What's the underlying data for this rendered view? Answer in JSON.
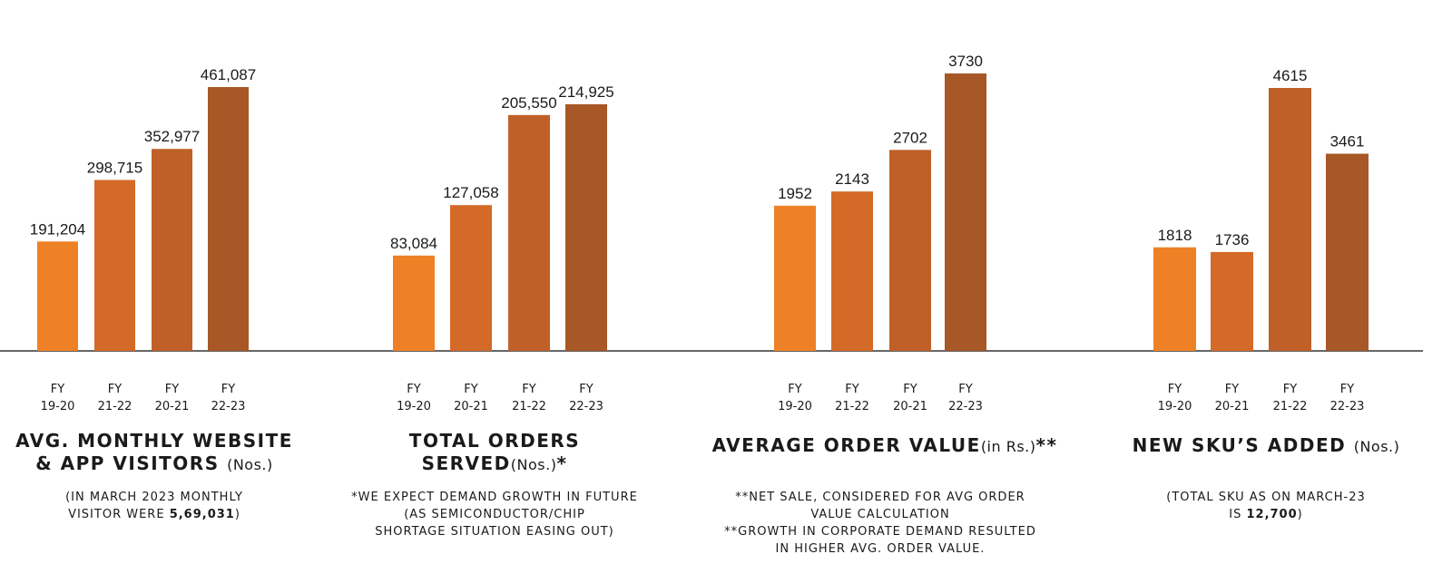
{
  "colors": [
    "#EE8125",
    "#D46A28",
    "#BF6028",
    "#A85726"
  ],
  "axis_color": "#333333",
  "chart_data": [
    {
      "type": "bar",
      "categories": [
        "FY 19-20",
        "FY 21-22",
        "FY 20-21",
        "FY 22-23"
      ],
      "values": [
        191204,
        298715,
        352977,
        461087
      ],
      "labels": [
        "191,204",
        "298,715",
        "352,977",
        "461,087"
      ],
      "ticks": [
        [
          "FY",
          "19-20"
        ],
        [
          "FY",
          "21-22"
        ],
        [
          "FY",
          "20-21"
        ],
        [
          "FY",
          "22-23"
        ]
      ],
      "title": "AVG. MONTHLY WEBSITE & APP VISITORS (Nos.)",
      "title_lines": [
        "AVG. MONTHLY WEBSITE",
        "& APP VISITORS "
      ],
      "title_unit": "(Nos.)",
      "note_lines": [
        "(IN MARCH 2023 MONTHLY",
        "VISITOR WERE "
      ],
      "note_emphasis": "5,69,031",
      "note_tail": ")"
    },
    {
      "type": "bar",
      "categories": [
        "FY 19-20",
        "FY 20-21",
        "FY 21-22",
        "FY 22-23"
      ],
      "values": [
        83084,
        127058,
        205550,
        214925
      ],
      "labels": [
        "83,084",
        "127,058",
        "205,550",
        "214,925"
      ],
      "ticks": [
        [
          "FY",
          "19-20"
        ],
        [
          "FY",
          "20-21"
        ],
        [
          "FY",
          "21-22"
        ],
        [
          "FY",
          "22-23"
        ]
      ],
      "title": "TOTAL ORDERS SERVED(Nos.)*",
      "title_lines": [
        "TOTAL ORDERS",
        "SERVED"
      ],
      "title_unit": "(Nos.)",
      "title_suffix": "*",
      "note_lines": [
        "*WE EXPECT DEMAND GROWTH IN FUTURE",
        "(AS SEMICONDUCTOR/CHIP",
        "SHORTAGE SITUATION EASING OUT)"
      ]
    },
    {
      "type": "bar",
      "categories": [
        "FY 19-20",
        "FY 21-22",
        "FY 20-21",
        "FY 22-23"
      ],
      "values": [
        1952,
        2143,
        2702,
        3730
      ],
      "labels": [
        "1952",
        "2143",
        "2702",
        "3730"
      ],
      "ticks": [
        [
          "FY",
          "19-20"
        ],
        [
          "FY",
          "21-22"
        ],
        [
          "FY",
          "20-21"
        ],
        [
          "FY",
          "22-23"
        ]
      ],
      "title": "AVERAGE ORDER VALUE(in Rs.)**",
      "title_lines": [
        "AVERAGE ORDER VALUE"
      ],
      "title_unit": "(in Rs.)",
      "title_suffix": "**",
      "note_lines": [
        "**NET SALE, CONSIDERED FOR AVG ORDER",
        "VALUE CALCULATION",
        "**GROWTH IN CORPORATE DEMAND RESULTED",
        "IN HIGHER AVG. ORDER VALUE."
      ]
    },
    {
      "type": "bar",
      "categories": [
        "FY 19-20",
        "FY 20-21",
        "FY 21-22",
        "FY 22-23"
      ],
      "values": [
        1818,
        1736,
        4615,
        3461
      ],
      "labels": [
        "1818",
        "1736",
        "4615",
        "3461"
      ],
      "ticks": [
        [
          "FY",
          "19-20"
        ],
        [
          "FY",
          "20-21"
        ],
        [
          "FY",
          "21-22"
        ],
        [
          "FY",
          "22-23"
        ]
      ],
      "title": "NEW SKU’S ADDED (Nos.)",
      "title_lines": [
        "NEW SKU’S ADDED "
      ],
      "title_unit": "(Nos.)",
      "note_lines": [
        "(TOTAL SKU AS ON MARCH-23",
        "IS "
      ],
      "note_emphasis": "12,700",
      "note_tail": ")"
    }
  ]
}
